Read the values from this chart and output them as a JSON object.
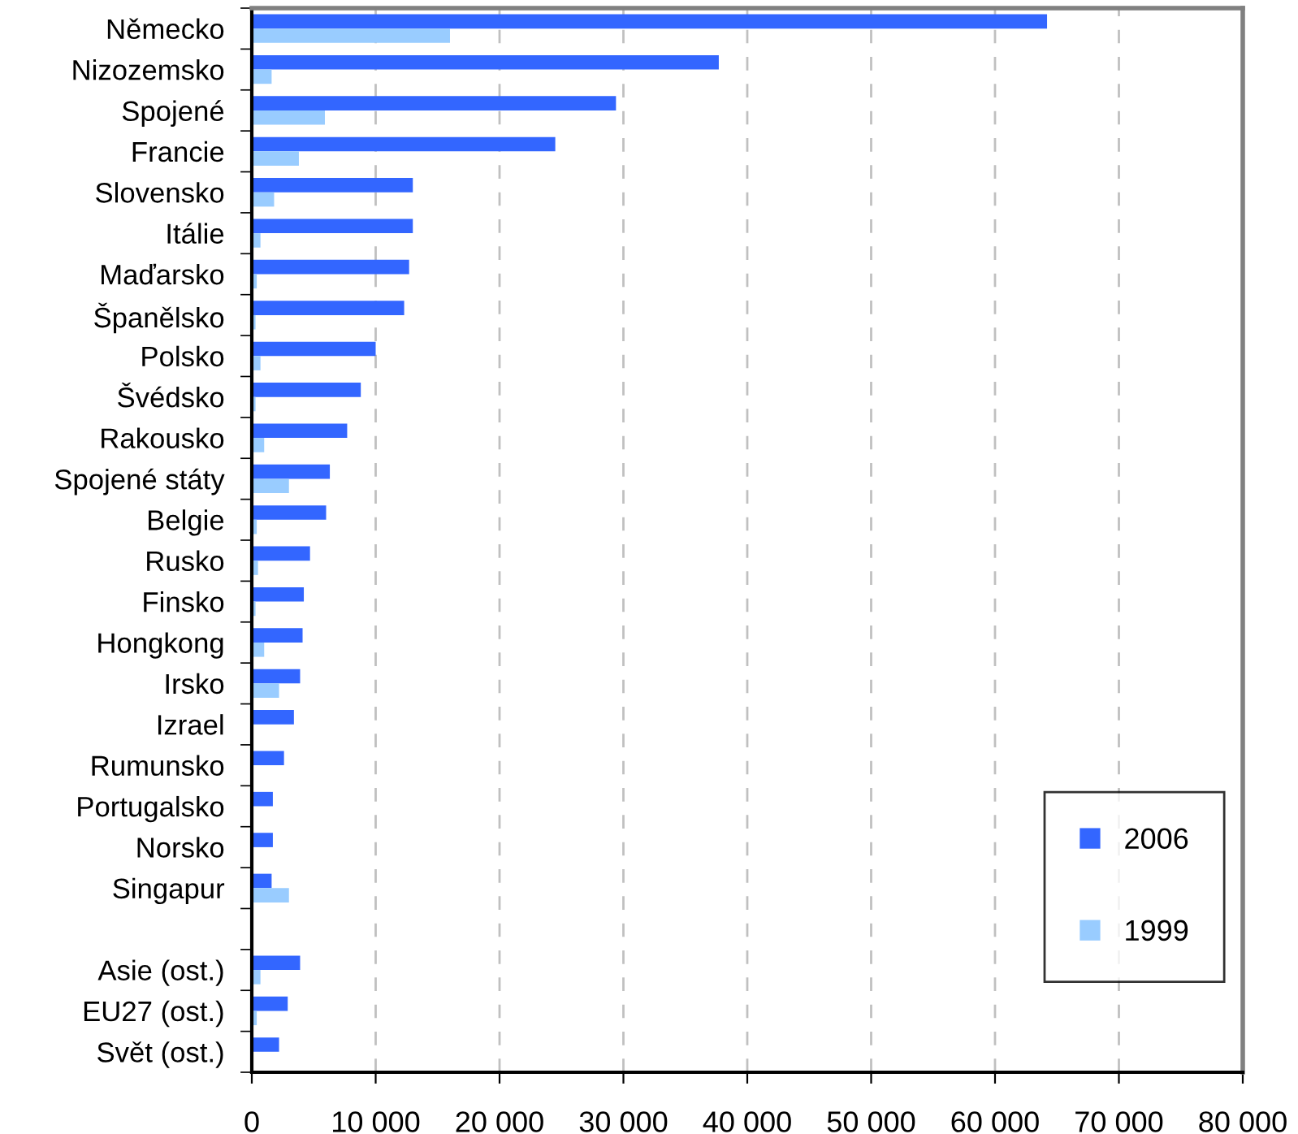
{
  "chart_data": {
    "type": "bar",
    "orientation": "horizontal",
    "categories": [
      "Německo",
      "Nizozemsko",
      "Spojené",
      "Francie",
      "Slovensko",
      "Itálie",
      "Maďarsko",
      "Španělsko",
      "Polsko",
      "Švédsko",
      "Rakousko",
      "Spojené státy",
      "Belgie",
      "Rusko",
      "Finsko",
      "Hongkong",
      "Irsko",
      "Izrael",
      "Rumunsko",
      "Portugalsko",
      "Norsko",
      "Singapur",
      null,
      "Asie (ost.)",
      "EU27 (ost.)",
      "Svět (ost.)"
    ],
    "series": [
      {
        "name": "2006",
        "color": "#3366ff",
        "values": [
          64200,
          37700,
          29400,
          24500,
          13000,
          13000,
          12700,
          12300,
          10000,
          8800,
          7700,
          6300,
          6000,
          4700,
          4200,
          4100,
          3900,
          3400,
          2600,
          1700,
          1700,
          1600,
          null,
          3900,
          2900,
          2200
        ]
      },
      {
        "name": "1999",
        "color": "#99ccff",
        "values": [
          16000,
          1600,
          5900,
          3800,
          1800,
          700,
          400,
          300,
          700,
          300,
          1000,
          3000,
          400,
          500,
          300,
          1000,
          2200,
          0,
          0,
          0,
          0,
          3000,
          null,
          700,
          400,
          0
        ]
      }
    ],
    "xlim": [
      0,
      80000
    ],
    "xticks": [
      0,
      {
        "value": 10000,
        "label": "10 000"
      },
      {
        "value": 20000,
        "label": "20 000"
      },
      {
        "value": 30000,
        "label": "30 000"
      },
      {
        "value": 40000,
        "label": "40 000"
      },
      {
        "value": 50000,
        "label": "50 000"
      },
      {
        "value": 60000,
        "label": "60 000"
      },
      {
        "value": 70000,
        "label": "70 000"
      },
      {
        "value": 80000,
        "label": "80 000"
      }
    ],
    "grid": "x",
    "legend": "bottom right"
  }
}
